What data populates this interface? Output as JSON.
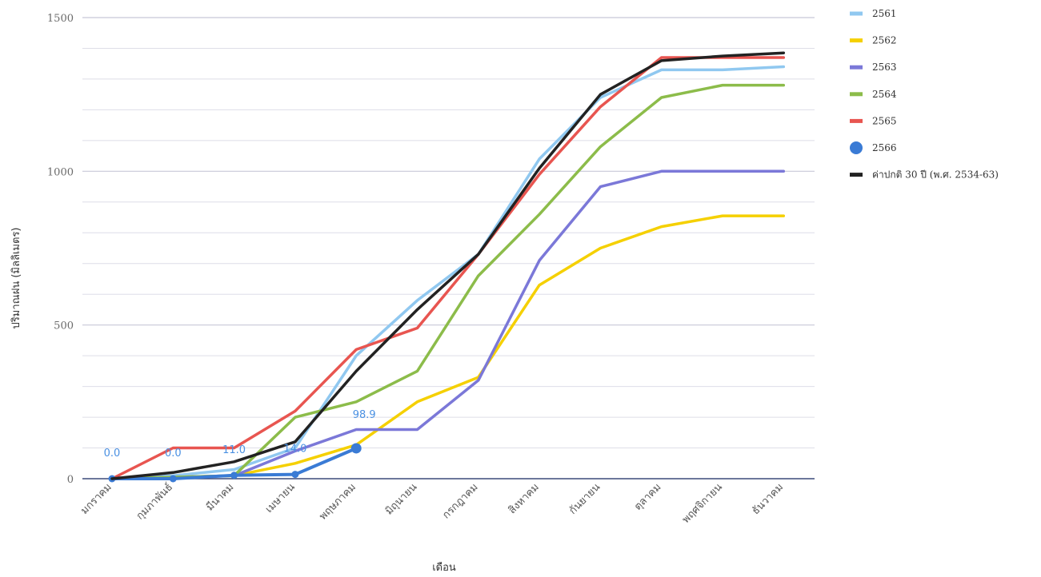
{
  "chart_data": {
    "type": "line",
    "title": "",
    "xlabel": "เดือน",
    "ylabel": "ปริมาณฝน (มิลลิเมตร)",
    "ylim": [
      0,
      1500
    ],
    "yticks": [
      0,
      500,
      1000,
      1500
    ],
    "grid": true,
    "legend_position": "right",
    "categories": [
      "มกราคม",
      "กุมภาพันธ์",
      "มีนาคม",
      "เมษายน",
      "พฤษภาคม",
      "มิถุนายน",
      "กรกฎาคม",
      "สิงหาคม",
      "กันยายน",
      "ตุลาคม",
      "พฤศจิกายน",
      "ธันวาคม"
    ],
    "series": [
      {
        "name": "2561",
        "color": "#90c8f0",
        "values": [
          0,
          10,
          30,
          100,
          400,
          580,
          730,
          1040,
          1240,
          1330,
          1330,
          1340
        ]
      },
      {
        "name": "2562",
        "color": "#f5d000",
        "values": [
          0,
          5,
          10,
          50,
          110,
          250,
          330,
          630,
          750,
          820,
          855,
          855
        ]
      },
      {
        "name": "2563",
        "color": "#7b78d8",
        "values": [
          0,
          5,
          10,
          90,
          160,
          160,
          320,
          710,
          950,
          1000,
          1000,
          1000
        ]
      },
      {
        "name": "2564",
        "color": "#8cbc4a",
        "values": [
          0,
          5,
          10,
          200,
          250,
          350,
          660,
          860,
          1080,
          1240,
          1280,
          1280
        ]
      },
      {
        "name": "2565",
        "color": "#e85550",
        "values": [
          0,
          100,
          100,
          220,
          420,
          490,
          730,
          990,
          1210,
          1370,
          1370,
          1370
        ]
      },
      {
        "name": "2566",
        "color": "#3a7bd5",
        "values": [
          0,
          0,
          11,
          14,
          98.9,
          null,
          null,
          null,
          null,
          null,
          null,
          null
        ],
        "labels": [
          "0.0",
          "0.0",
          "11.0",
          "14.0",
          "98.9"
        ],
        "marker": "circle"
      },
      {
        "name": "ค่าปกติ 30 ปี (พ.ศ. 2534-63)",
        "color": "#222222",
        "values": [
          0,
          20,
          55,
          120,
          350,
          550,
          730,
          1010,
          1250,
          1360,
          1375,
          1385
        ]
      }
    ]
  }
}
